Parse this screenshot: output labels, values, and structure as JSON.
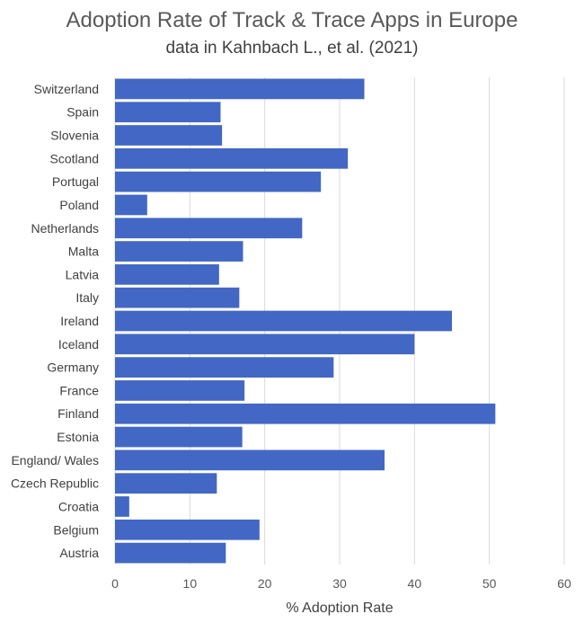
{
  "chart_data": {
    "type": "bar",
    "orientation": "horizontal",
    "title": "Adoption Rate of Track & Trace Apps in Europe",
    "subtitle": "data in Kahnbach L., et al. (2021)",
    "xlabel": "% Adoption Rate",
    "ylabel": "",
    "xlim": [
      0,
      60
    ],
    "xticks": [
      "0",
      "10",
      "20",
      "30",
      "40",
      "50",
      "60"
    ],
    "grid": true,
    "bar_color": "#4267C4",
    "categories": [
      "Switzerland",
      "Spain",
      "Slovenia",
      "Scotland",
      "Portugal",
      "Poland",
      "Netherlands",
      "Malta",
      "Latvia",
      "Italy",
      "Ireland",
      "Iceland",
      "Germany",
      "France",
      "Finland",
      "Estonia",
      "England/ Wales",
      "Czech Republic",
      "Croatia",
      "Belgium",
      "Austria"
    ],
    "values": [
      33.3,
      14.1,
      14.3,
      31.1,
      27.5,
      4.3,
      25.0,
      17.1,
      13.9,
      16.6,
      45.0,
      40.0,
      29.2,
      17.3,
      50.8,
      17.0,
      36.0,
      13.6,
      1.9,
      19.3,
      14.8
    ]
  }
}
